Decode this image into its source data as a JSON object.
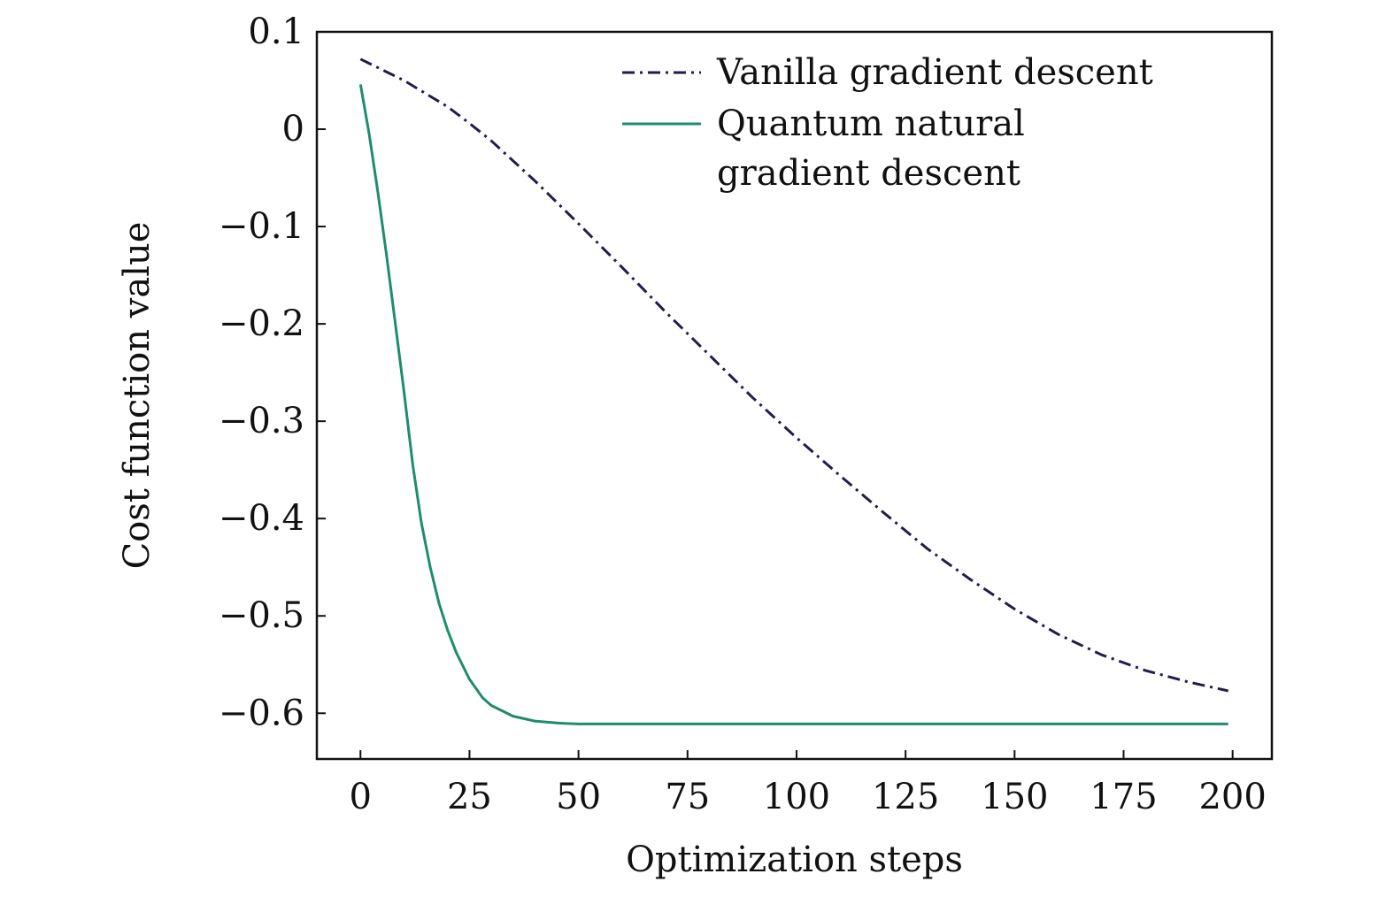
{
  "chart_data": {
    "type": "line",
    "xlabel": "Optimization steps",
    "ylabel": "Cost function value",
    "xlim": [
      -10,
      209
    ],
    "ylim": [
      -0.647,
      0.1
    ],
    "x_ticks": [
      0,
      25,
      50,
      75,
      100,
      125,
      150,
      175,
      200
    ],
    "y_ticks": [
      0.1,
      0,
      -0.1,
      -0.2,
      -0.3,
      -0.4,
      -0.5,
      -0.6
    ],
    "x_tick_labels": [
      "0",
      "25",
      "50",
      "75",
      "100",
      "125",
      "150",
      "175",
      "200"
    ],
    "y_tick_labels": [
      "0.1",
      "0",
      "−0.1",
      "−0.2",
      "−0.3",
      "−0.4",
      "−0.5",
      "−0.6"
    ],
    "grid": false,
    "legend_position": "top-right",
    "series": [
      {
        "name": "Vanilla gradient descent",
        "style": "dash-dot",
        "color": "#1f1d4d",
        "x": [
          0,
          10,
          20,
          25,
          30,
          40,
          50,
          60,
          70,
          75,
          80,
          90,
          100,
          110,
          120,
          130,
          140,
          150,
          160,
          170,
          180,
          190,
          199
        ],
        "y": [
          0.072,
          0.05,
          0.023,
          0.006,
          -0.012,
          -0.053,
          -0.097,
          -0.142,
          -0.188,
          -0.21,
          -0.232,
          -0.276,
          -0.317,
          -0.356,
          -0.394,
          -0.431,
          -0.463,
          -0.493,
          -0.519,
          -0.54,
          -0.556,
          -0.568,
          -0.577
        ]
      },
      {
        "name": "Quantum natural gradient descent",
        "name_lines": [
          "Quantum natural",
          "gradient descent"
        ],
        "style": "solid",
        "color": "#1f8c6e",
        "x": [
          0,
          2,
          4,
          6,
          8,
          10,
          12,
          14,
          16,
          18,
          20,
          22,
          25,
          28,
          30,
          35,
          40,
          45,
          50,
          60,
          80,
          100,
          125,
          150,
          175,
          199
        ],
        "y": [
          0.046,
          -0.005,
          -0.065,
          -0.13,
          -0.2,
          -0.27,
          -0.345,
          -0.405,
          -0.45,
          -0.487,
          -0.515,
          -0.538,
          -0.565,
          -0.584,
          -0.592,
          -0.603,
          -0.608,
          -0.61,
          -0.611,
          -0.611,
          -0.611,
          -0.611,
          -0.611,
          -0.611,
          -0.611,
          -0.611
        ]
      }
    ]
  }
}
